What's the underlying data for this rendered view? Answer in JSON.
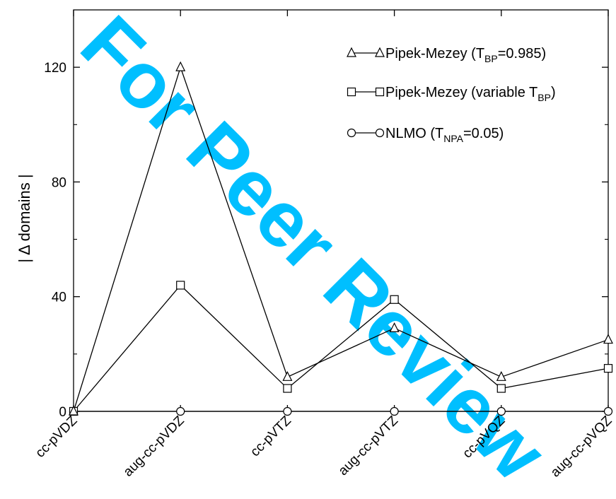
{
  "chart_data": {
    "type": "line",
    "title": "",
    "xlabel": "",
    "ylabel": "| Δ domains |",
    "categories": [
      "cc-pVDZ",
      "aug-cc-pVDZ",
      "cc-pVTZ",
      "aug-cc-pVTZ",
      "cc-pVQZ",
      "aug-cc-pVQZ"
    ],
    "ylim": [
      0,
      140
    ],
    "yticks": [
      0,
      40,
      80,
      120
    ],
    "grid": false,
    "legend_position": "top-right",
    "series": [
      {
        "name_main": "Pipek-Mezey (T",
        "name_sub": "BP",
        "name_tail": "=0.985)",
        "marker": "triangle",
        "values": [
          0,
          120,
          12,
          29,
          12,
          25
        ]
      },
      {
        "name_main": "Pipek-Mezey (variable T",
        "name_sub": "BP",
        "name_tail": ")",
        "marker": "square",
        "values": [
          0,
          44,
          8,
          39,
          8,
          15
        ]
      },
      {
        "name_main": "NLMO (T",
        "name_sub": "NPA",
        "name_tail": "=0.05)",
        "marker": "circle",
        "values": [
          0,
          0,
          0,
          0,
          0,
          0
        ]
      }
    ],
    "watermark": "For Peer Review",
    "colors": {
      "line": "#000000",
      "watermark": "#00bfff"
    }
  }
}
